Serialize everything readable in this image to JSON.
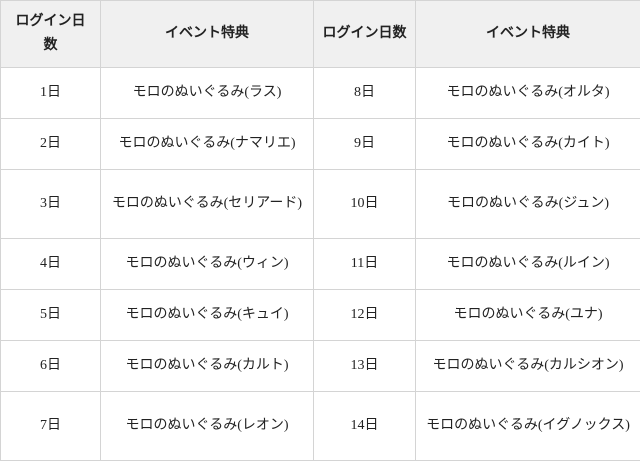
{
  "headers": [
    "ログイン日数",
    "イベント特典",
    "ログイン日数",
    "イベント特典"
  ],
  "rows": [
    {
      "day_a": "1日",
      "reward_a": "モロのぬいぐるみ(ラス)",
      "day_b": "8日",
      "reward_b": "モロのぬいぐるみ(オルタ)"
    },
    {
      "day_a": "2日",
      "reward_a": "モロのぬいぐるみ(ナマリエ)",
      "day_b": "9日",
      "reward_b": "モロのぬいぐるみ(カイト)"
    },
    {
      "day_a": "3日",
      "reward_a": "モロのぬいぐるみ(セリアード)",
      "day_b": "10日",
      "reward_b": "モロのぬいぐるみ(ジュン)"
    },
    {
      "day_a": "4日",
      "reward_a": "モロのぬいぐるみ(ウィン)",
      "day_b": "11日",
      "reward_b": "モロのぬいぐるみ(ルイン)"
    },
    {
      "day_a": "5日",
      "reward_a": "モロのぬいぐるみ(キュイ)",
      "day_b": "12日",
      "reward_b": "モロのぬいぐるみ(ユナ)"
    },
    {
      "day_a": "6日",
      "reward_a": "モロのぬいぐるみ(カルト)",
      "day_b": "13日",
      "reward_b": "モロのぬいぐるみ(カルシオン)"
    },
    {
      "day_a": "7日",
      "reward_a": "モロのぬいぐるみ(レオン)",
      "day_b": "14日",
      "reward_b": "モロのぬいぐるみ(イグノックス)"
    }
  ]
}
